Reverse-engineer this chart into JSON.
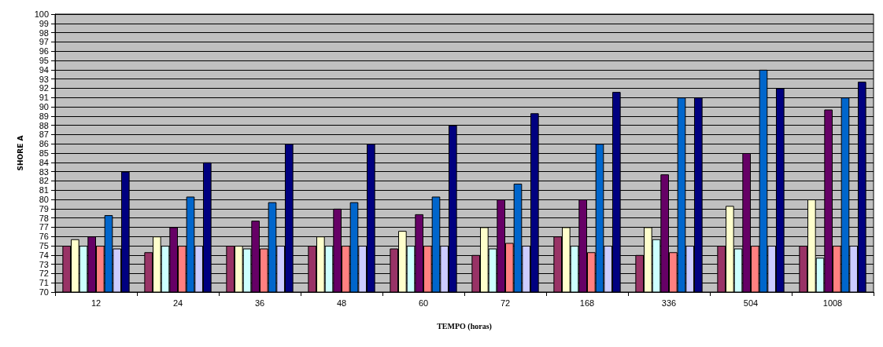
{
  "chart_data": {
    "type": "bar",
    "xlabel": "TEMPO (horas)",
    "ylabel": "SHORE A",
    "categories": [
      "12",
      "24",
      "36",
      "48",
      "60",
      "72",
      "168",
      "336",
      "504",
      "1008"
    ],
    "series": [
      {
        "color": "#993366",
        "values": [
          75,
          74.3,
          75,
          75,
          74.7,
          74,
          76,
          74,
          75,
          75
        ]
      },
      {
        "color": "#ffffcc",
        "values": [
          75.7,
          76,
          75,
          76,
          76.6,
          77,
          77,
          77,
          79.3,
          80
        ]
      },
      {
        "color": "#ccffff",
        "values": [
          75,
          75,
          74.7,
          75,
          75,
          74.7,
          75,
          75.7,
          74.7,
          73.7
        ]
      },
      {
        "color": "#660066",
        "values": [
          76,
          77,
          77.7,
          79,
          78.4,
          80,
          80,
          82.7,
          85,
          89.7
        ]
      },
      {
        "color": "#ff8080",
        "values": [
          75,
          75,
          74.7,
          75,
          75,
          75.3,
          74.3,
          74.3,
          75,
          75
        ]
      },
      {
        "color": "#0066cc",
        "values": [
          78.3,
          80.3,
          79.7,
          79.7,
          80.3,
          81.7,
          86,
          91,
          94,
          91
        ]
      },
      {
        "color": "#ccccff",
        "values": [
          74.7,
          75,
          75,
          75,
          75,
          75,
          75,
          75,
          75,
          75
        ]
      },
      {
        "color": "#000080",
        "values": [
          83,
          84,
          86,
          86,
          88,
          89.3,
          91.6,
          91,
          92,
          92.7
        ]
      }
    ],
    "ylim": [
      70,
      100
    ],
    "yticks": [
      70,
      71,
      72,
      73,
      74,
      75,
      76,
      77,
      78,
      79,
      80,
      81,
      82,
      83,
      84,
      85,
      86,
      87,
      88,
      89,
      90,
      91,
      92,
      93,
      94,
      95,
      96,
      97,
      98,
      99,
      100
    ],
    "grid": "y"
  }
}
